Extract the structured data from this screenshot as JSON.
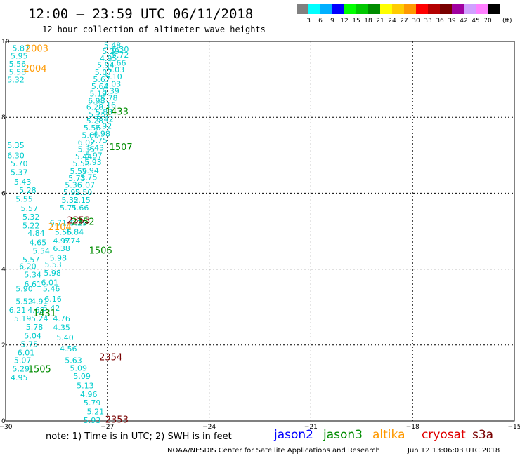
{
  "header": {
    "title": "12:00 – 23:59 UTC 06/11/2018",
    "subtitle": "12 hour collection of altimeter wave heights"
  },
  "legend": {
    "unit": "(ft)",
    "bins": [
      {
        "label": "3",
        "color": "#808080"
      },
      {
        "label": "6",
        "color": "#00ffff"
      },
      {
        "label": "9",
        "color": "#00b0ff"
      },
      {
        "label": "12",
        "color": "#0000ff"
      },
      {
        "label": "15",
        "color": "#00ff00"
      },
      {
        "label": "18",
        "color": "#00c800"
      },
      {
        "label": "21",
        "color": "#008c00"
      },
      {
        "label": "24",
        "color": "#ffff00"
      },
      {
        "label": "27",
        "color": "#ffcc00"
      },
      {
        "label": "30",
        "color": "#ff9900"
      },
      {
        "label": "33",
        "color": "#ff0000"
      },
      {
        "label": "36",
        "color": "#b40000"
      },
      {
        "label": "39",
        "color": "#780000"
      },
      {
        "label": "42",
        "color": "#a000a0"
      },
      {
        "label": "45",
        "color": "#d0a0ff"
      },
      {
        "label": "70",
        "color": "#ff80ff"
      },
      {
        "label": "",
        "color": "#000000"
      }
    ]
  },
  "footer": {
    "note": "note:  1) Time is in UTC;  2) SWH is in feet",
    "credit": "NOAA/NESDIS Center for Satellite Applications and Research",
    "timestamp": "Jun 12 13:06:03 UTC 2018",
    "satellites": [
      {
        "name": "jason2",
        "color": "#0000ff"
      },
      {
        "name": "jason3",
        "color": "#008c00"
      },
      {
        "name": "altika",
        "color": "#ff9900"
      },
      {
        "name": "cryosat",
        "color": "#e00000"
      },
      {
        "name": "s3a",
        "color": "#780000"
      }
    ]
  },
  "chart_data": {
    "type": "scatter",
    "xlim": [
      -30,
      -15
    ],
    "ylim": [
      0,
      10
    ],
    "xticks": [
      {
        "value": -30,
        "label": "−30"
      },
      {
        "value": -27,
        "label": "−27"
      },
      {
        "value": -24,
        "label": "−24"
      },
      {
        "value": -21,
        "label": "−21"
      },
      {
        "value": -18,
        "label": "−18"
      },
      {
        "value": -15,
        "label": "−15"
      }
    ],
    "yticks": [
      {
        "value": 0,
        "label": "0"
      },
      {
        "value": 2,
        "label": "2"
      },
      {
        "value": 4,
        "label": "4"
      },
      {
        "value": 6,
        "label": "6"
      },
      {
        "value": 8,
        "label": "8"
      },
      {
        "value": 10,
        "label": "10"
      }
    ],
    "grid": true,
    "swh_color": "#00cccc",
    "track_b": [
      {
        "x": -29.55,
        "y": 9.82,
        "label": "5.87"
      },
      {
        "x": -29.6,
        "y": 9.62,
        "label": "5.95"
      },
      {
        "x": -29.65,
        "y": 9.41,
        "label": "5.56"
      },
      {
        "x": -29.65,
        "y": 9.2,
        "label": "5.58"
      },
      {
        "x": -29.7,
        "y": 8.99,
        "label": "5.32"
      }
    ],
    "track_a": [
      {
        "x": -26.85,
        "y": 9.9,
        "label": "5.48"
      },
      {
        "x": -26.62,
        "y": 9.8,
        "label": "6.30"
      },
      {
        "x": -26.9,
        "y": 9.74,
        "label": "5.29"
      },
      {
        "x": -26.62,
        "y": 9.65,
        "label": "5.72"
      },
      {
        "x": -26.97,
        "y": 9.56,
        "label": "4.95"
      },
      {
        "x": -26.7,
        "y": 9.44,
        "label": "5.66"
      },
      {
        "x": -27.05,
        "y": 9.38,
        "label": "5.94"
      },
      {
        "x": -26.75,
        "y": 9.26,
        "label": "5.03"
      },
      {
        "x": -27.12,
        "y": 9.19,
        "label": "5.07"
      },
      {
        "x": -26.82,
        "y": 9.08,
        "label": "5.10"
      },
      {
        "x": -27.17,
        "y": 9.0,
        "label": "5.67"
      },
      {
        "x": -26.85,
        "y": 8.88,
        "label": "5.03"
      },
      {
        "x": -27.22,
        "y": 8.82,
        "label": "5.64"
      },
      {
        "x": -26.9,
        "y": 8.7,
        "label": "5.39"
      },
      {
        "x": -27.27,
        "y": 8.62,
        "label": "5.19"
      },
      {
        "x": -26.95,
        "y": 8.51,
        "label": "5.78"
      },
      {
        "x": -27.32,
        "y": 8.44,
        "label": "6.98"
      },
      {
        "x": -27.0,
        "y": 8.33,
        "label": "5.16"
      },
      {
        "x": -27.37,
        "y": 8.27,
        "label": "6.28"
      },
      {
        "x": -27.1,
        "y": 8.14,
        "label": "5.83"
      },
      {
        "x": -27.3,
        "y": 8.08,
        "label": "5.25"
      },
      {
        "x": -27.07,
        "y": 7.96,
        "label": "5.42"
      },
      {
        "x": -27.37,
        "y": 7.91,
        "label": "5.28"
      },
      {
        "x": -27.12,
        "y": 7.77,
        "label": "5.92"
      },
      {
        "x": -27.45,
        "y": 7.73,
        "label": "5.56"
      },
      {
        "x": -27.17,
        "y": 7.57,
        "label": "4.98"
      },
      {
        "x": -27.5,
        "y": 7.53,
        "label": "5.60"
      },
      {
        "x": -27.25,
        "y": 7.39,
        "label": "5.75"
      },
      {
        "x": -27.62,
        "y": 7.34,
        "label": "6.02"
      },
      {
        "x": -27.35,
        "y": 7.2,
        "label": "5.43"
      },
      {
        "x": -27.62,
        "y": 7.16,
        "label": "5.35"
      },
      {
        "x": -27.4,
        "y": 7.0,
        "label": "5.97"
      },
      {
        "x": -27.7,
        "y": 6.97,
        "label": "5.44"
      },
      {
        "x": -27.42,
        "y": 6.82,
        "label": "5.93"
      },
      {
        "x": -27.77,
        "y": 6.78,
        "label": "5.58"
      },
      {
        "x": -27.5,
        "y": 6.6,
        "label": "5.94"
      },
      {
        "x": -27.85,
        "y": 6.58,
        "label": "5.59"
      },
      {
        "x": -27.55,
        "y": 6.42,
        "label": "5.75"
      },
      {
        "x": -27.9,
        "y": 6.4,
        "label": "5.73"
      },
      {
        "x": -27.62,
        "y": 6.22,
        "label": "5.07"
      },
      {
        "x": -28.0,
        "y": 6.22,
        "label": "5.36"
      },
      {
        "x": -27.7,
        "y": 6.03,
        "label": "5.50"
      },
      {
        "x": -28.05,
        "y": 6.03,
        "label": "5.92"
      },
      {
        "x": -27.75,
        "y": 5.82,
        "label": "5.15"
      },
      {
        "x": -28.1,
        "y": 5.82,
        "label": "5.32"
      },
      {
        "x": -27.8,
        "y": 5.62,
        "label": "5.66"
      },
      {
        "x": -28.15,
        "y": 5.62,
        "label": "5.71"
      },
      {
        "x": -27.85,
        "y": 5.22,
        "label": "5.29"
      },
      {
        "x": -28.45,
        "y": 5.22,
        "label": "6.71"
      },
      {
        "x": -27.95,
        "y": 4.98,
        "label": "5.84"
      },
      {
        "x": -28.3,
        "y": 4.98,
        "label": "5.56"
      },
      {
        "x": -28.05,
        "y": 4.75,
        "label": "6.74"
      },
      {
        "x": -28.35,
        "y": 4.75,
        "label": "4.97"
      },
      {
        "x": -28.35,
        "y": 4.55,
        "label": "6.38"
      },
      {
        "x": -28.45,
        "y": 4.3,
        "label": "5.98"
      },
      {
        "x": -28.6,
        "y": 4.12,
        "label": "5.53"
      },
      {
        "x": -28.62,
        "y": 3.9,
        "label": "5.98"
      },
      {
        "x": -28.7,
        "y": 3.65,
        "label": "6.01"
      },
      {
        "x": -28.65,
        "y": 3.48,
        "label": "5.46"
      },
      {
        "x": -28.6,
        "y": 3.22,
        "label": "6.16"
      },
      {
        "x": -28.65,
        "y": 2.98,
        "label": "5.42"
      },
      {
        "x": -28.35,
        "y": 2.7,
        "label": "4.76"
      },
      {
        "x": -28.35,
        "y": 2.47,
        "label": "4.35"
      },
      {
        "x": -28.25,
        "y": 2.2,
        "label": "5.40"
      },
      {
        "x": -28.15,
        "y": 1.9,
        "label": "4.56"
      },
      {
        "x": -28.0,
        "y": 1.6,
        "label": "5.63"
      },
      {
        "x": -27.85,
        "y": 1.4,
        "label": "5.09"
      },
      {
        "x": -27.75,
        "y": 1.18,
        "label": "5.09"
      },
      {
        "x": -27.65,
        "y": 0.93,
        "label": "5.13"
      },
      {
        "x": -27.55,
        "y": 0.7,
        "label": "4.96"
      },
      {
        "x": -27.45,
        "y": 0.48,
        "label": "5.79"
      },
      {
        "x": -27.35,
        "y": 0.25,
        "label": "5.21"
      },
      {
        "x": -27.45,
        "y": 0.02,
        "label": "5.93"
      }
    ],
    "track_c": [
      {
        "x": -29.7,
        "y": 7.26,
        "label": "5.35"
      },
      {
        "x": -29.7,
        "y": 7.0,
        "label": "6.30"
      },
      {
        "x": -29.6,
        "y": 6.78,
        "label": "5.70"
      },
      {
        "x": -29.6,
        "y": 6.55,
        "label": "5.37"
      },
      {
        "x": -29.5,
        "y": 6.3,
        "label": "5.43"
      },
      {
        "x": -29.35,
        "y": 6.08,
        "label": "5.28"
      },
      {
        "x": -29.45,
        "y": 5.85,
        "label": "5.55"
      },
      {
        "x": -29.3,
        "y": 5.6,
        "label": "5.57"
      },
      {
        "x": -29.25,
        "y": 5.38,
        "label": "5.32"
      },
      {
        "x": -29.25,
        "y": 5.15,
        "label": "5.22"
      },
      {
        "x": -29.1,
        "y": 4.95,
        "label": "4.84"
      },
      {
        "x": -29.05,
        "y": 4.7,
        "label": "4.65"
      },
      {
        "x": -28.95,
        "y": 4.48,
        "label": "5.54"
      },
      {
        "x": -29.25,
        "y": 4.25,
        "label": "5.57"
      },
      {
        "x": -29.35,
        "y": 4.08,
        "label": "6.20"
      },
      {
        "x": -29.2,
        "y": 3.85,
        "label": "5.34"
      },
      {
        "x": -29.2,
        "y": 3.6,
        "label": "6.61"
      },
      {
        "x": -29.45,
        "y": 3.48,
        "label": "5.90"
      },
      {
        "x": -29.45,
        "y": 3.15,
        "label": "5.52"
      },
      {
        "x": -29.0,
        "y": 3.15,
        "label": "4.91"
      },
      {
        "x": -29.65,
        "y": 2.92,
        "label": "6.21"
      },
      {
        "x": -29.1,
        "y": 2.92,
        "label": "4.68"
      },
      {
        "x": -29.5,
        "y": 2.7,
        "label": "5.19"
      },
      {
        "x": -29.0,
        "y": 2.7,
        "label": "5.24"
      },
      {
        "x": -29.15,
        "y": 2.48,
        "label": "5.78"
      },
      {
        "x": -29.2,
        "y": 2.25,
        "label": "5.04"
      },
      {
        "x": -29.3,
        "y": 2.02,
        "label": "5.75"
      },
      {
        "x": -29.4,
        "y": 1.8,
        "label": "6.01"
      },
      {
        "x": -29.5,
        "y": 1.6,
        "label": "5.07"
      },
      {
        "x": -29.55,
        "y": 1.38,
        "label": "5.29"
      },
      {
        "x": -29.6,
        "y": 1.15,
        "label": "4.95"
      }
    ],
    "pass_times": [
      {
        "x": -29.08,
        "y": 9.82,
        "label": "2003",
        "satellite": "altika"
      },
      {
        "x": -29.13,
        "y": 9.3,
        "label": "2004",
        "satellite": "altika"
      },
      {
        "x": -26.72,
        "y": 8.16,
        "label": "1433",
        "satellite": "jason3"
      },
      {
        "x": -26.6,
        "y": 7.23,
        "label": "1507",
        "satellite": "jason3"
      },
      {
        "x": -27.72,
        "y": 5.26,
        "label": "2352",
        "satellite": "jason3"
      },
      {
        "x": -27.85,
        "y": 5.3,
        "label": "2353",
        "satellite": "s3a"
      },
      {
        "x": -28.4,
        "y": 5.12,
        "label": "2104",
        "satellite": "altika"
      },
      {
        "x": -27.2,
        "y": 4.5,
        "label": "1506",
        "satellite": "jason3"
      },
      {
        "x": -28.85,
        "y": 2.85,
        "label": "1431",
        "satellite": "jason3"
      },
      {
        "x": -26.9,
        "y": 1.69,
        "label": "2354",
        "satellite": "s3a"
      },
      {
        "x": -29.0,
        "y": 1.38,
        "label": "1505",
        "satellite": "jason3"
      },
      {
        "x": -26.72,
        "y": 0.05,
        "label": "2353",
        "satellite": "s3a"
      }
    ]
  }
}
